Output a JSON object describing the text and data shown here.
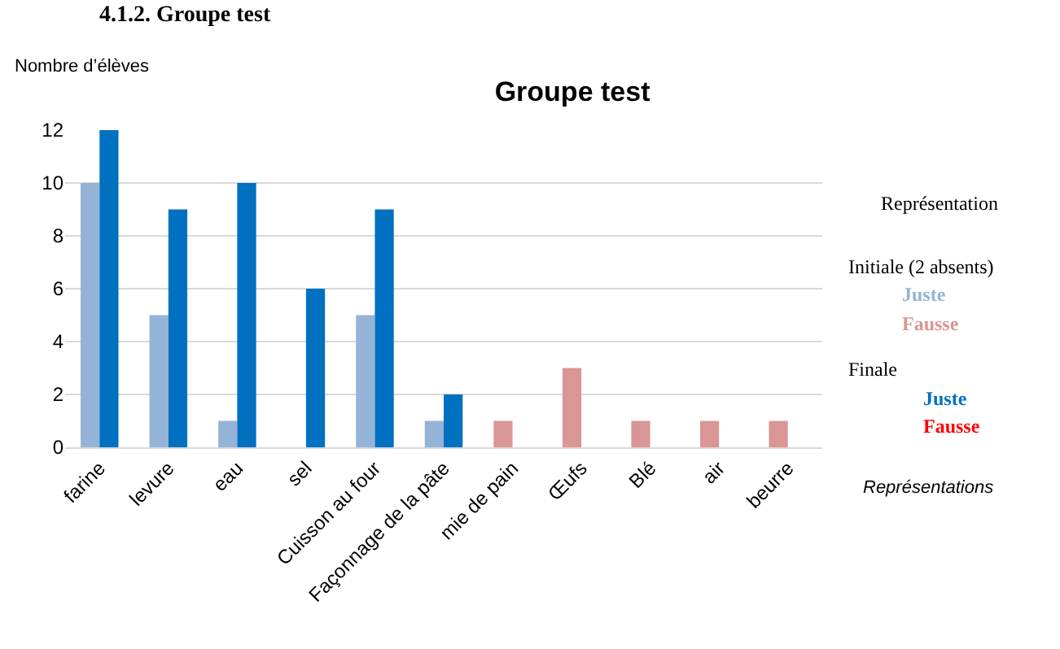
{
  "chart_data": {
    "type": "bar",
    "title": "Groupe test",
    "subtitle": "4.1.2. Groupe test",
    "xlabel": "Représentations",
    "ylabel": "Nombre d’élèves",
    "legend_title": "Représentation",
    "annotations": [
      "Initiale (2 absents)",
      "Finale"
    ],
    "categories": [
      "farine",
      "levure",
      "eau",
      "sel",
      "Cuisson au four",
      "Façonnage de la pâte",
      "mie de pain",
      "Œufs",
      "Blé",
      "air",
      "beurre"
    ],
    "series": [
      {
        "name": "Juste",
        "color": "#95b3d7",
        "values": [
          10,
          5,
          1,
          null,
          5,
          1,
          null,
          null,
          null,
          null,
          null
        ]
      },
      {
        "name": "Fausse",
        "color": "#d99694",
        "values": [
          null,
          null,
          null,
          null,
          null,
          null,
          1,
          3,
          1,
          1,
          1
        ]
      },
      {
        "name": "Juste",
        "color": "#0070c0",
        "values": [
          12,
          9,
          10,
          6,
          9,
          2,
          null,
          null,
          null,
          null,
          null
        ]
      },
      {
        "name": "Fausse",
        "color": "#ff0000",
        "values": [
          null,
          null,
          null,
          null,
          null,
          null,
          null,
          null,
          null,
          null,
          null
        ]
      }
    ],
    "ylim": [
      0,
      12
    ],
    "yticks": [
      0,
      2,
      4,
      6,
      8,
      10,
      12
    ],
    "grid": "y",
    "legend": "right"
  }
}
